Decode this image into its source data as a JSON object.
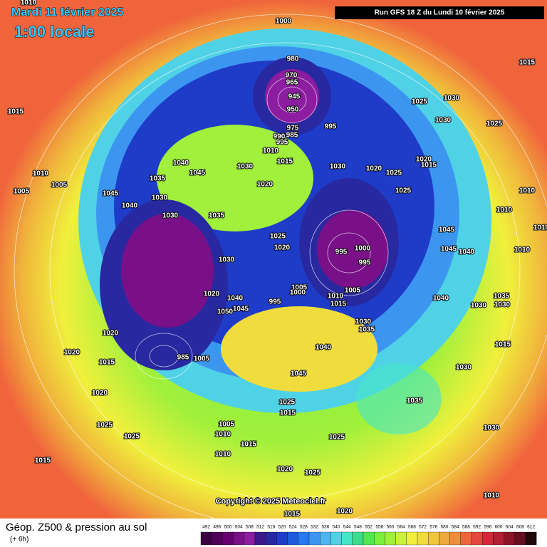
{
  "header": {
    "date": "Mardi 11 février 2025",
    "time": "1:00 locale",
    "run": "Run GFS 18 Z du Lundi 10 février 2025"
  },
  "map": {
    "isobar_labels": [
      "1010",
      "1000",
      "1015",
      "1015",
      "980",
      "970",
      "965",
      "945",
      "950",
      "975",
      "985",
      "990",
      "995",
      "1010",
      "995",
      "1030",
      "1025",
      "1030",
      "1025",
      "1040",
      "1045",
      "1035",
      "1030",
      "1015",
      "1030",
      "1020",
      "1025",
      "1020",
      "1015",
      "1025",
      "1010",
      "1010",
      "1005",
      "1005",
      "1045",
      "1040",
      "1030",
      "1030",
      "1035",
      "1020",
      "1010",
      "1045",
      "1025",
      "1020",
      "995",
      "1000",
      "995",
      "1045",
      "1040",
      "1010",
      "1010",
      "1030",
      "1005",
      "1000",
      "1005",
      "995",
      "1010",
      "1015",
      "1040",
      "1035",
      "1030",
      "1030",
      "1020",
      "1040",
      "1045",
      "1050",
      "1030",
      "1035",
      "1040",
      "1015",
      "1020",
      "1020",
      "985",
      "1005",
      "1015",
      "1030",
      "1045",
      "1020",
      "1025",
      "1015",
      "1035",
      "1025",
      "1025",
      "1005",
      "1010",
      "1015",
      "1025",
      "1030",
      "1010",
      "1015",
      "1020",
      "1025",
      "1010",
      "1015",
      "1020"
    ]
  },
  "copyright": "Copyright © 2025 Meteociel.fr",
  "legend": {
    "title": "Géop. Z500 & pression au sol",
    "lead": "(+ 6h)",
    "scale": [
      492,
      496,
      500,
      504,
      508,
      512,
      516,
      520,
      524,
      528,
      532,
      536,
      540,
      544,
      548,
      552,
      556,
      560,
      564,
      568,
      572,
      576,
      580,
      584,
      588,
      592,
      596,
      600,
      604,
      608,
      612
    ],
    "colors": [
      "#3a0040",
      "#500058",
      "#660070",
      "#7a1088",
      "#8c1ca0",
      "#3c1a8a",
      "#2828a0",
      "#1e3cc8",
      "#1e5adc",
      "#2878f0",
      "#3c96f0",
      "#50b4f0",
      "#50d2e6",
      "#46e6c8",
      "#3cdc8c",
      "#50e650",
      "#78f03c",
      "#a0f03c",
      "#c8f03c",
      "#f0f03c",
      "#f0dc3c",
      "#f0c83c",
      "#f0aa3c",
      "#f08c3c",
      "#f0643c",
      "#e6463c",
      "#d2283c",
      "#b41e32",
      "#8c1428",
      "#641020",
      "#1e0a0a"
    ]
  }
}
